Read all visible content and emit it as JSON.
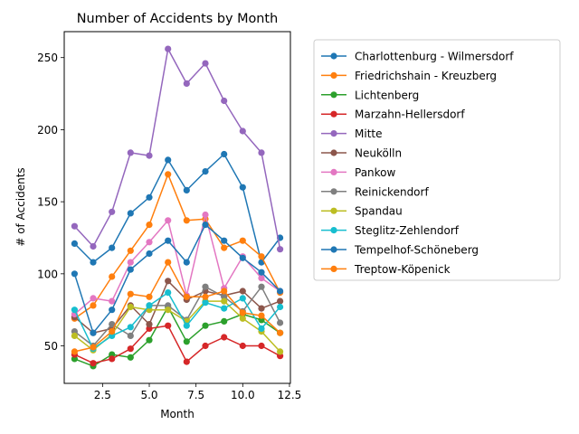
{
  "chart_data": {
    "type": "line",
    "title": "Number of Accidents by Month",
    "xlabel": "Month",
    "ylabel": "# of Accidents",
    "xlim": [
      0.45,
      12.55
    ],
    "ylim": [
      24,
      268
    ],
    "xticks": [
      2.5,
      5.0,
      7.5,
      10.0,
      12.5
    ],
    "xtick_labels": [
      "2.5",
      "5.0",
      "7.5",
      "10.0",
      "12.5"
    ],
    "yticks": [
      50,
      100,
      150,
      200,
      250
    ],
    "ytick_labels": [
      "50",
      "100",
      "150",
      "200",
      "250"
    ],
    "grid": false,
    "legend_position": "outside-right",
    "x": [
      1,
      2,
      3,
      4,
      5,
      6,
      7,
      8,
      9,
      10,
      11,
      12
    ],
    "series": [
      {
        "name": "Charlottenburg - Wilmersdorf",
        "color": "#1f77b4",
        "values": [
          121,
          108,
          118,
          142,
          153,
          179,
          158,
          171,
          183,
          160,
          108,
          125
        ]
      },
      {
        "name": "Friedrichshain - Kreuzberg",
        "color": "#ff7f0e",
        "values": [
          69,
          78,
          98,
          116,
          134,
          169,
          137,
          138,
          118,
          123,
          112,
          87
        ]
      },
      {
        "name": "Lichtenberg",
        "color": "#2ca02c",
        "values": [
          41,
          36,
          44,
          42,
          54,
          77,
          53,
          64,
          67,
          72,
          68,
          59
        ]
      },
      {
        "name": "Marzahn-Hellersdorf",
        "color": "#d62728",
        "values": [
          44,
          38,
          41,
          48,
          62,
          64,
          39,
          50,
          56,
          50,
          50,
          43
        ]
      },
      {
        "name": "Mitte",
        "color": "#9467bd",
        "values": [
          133,
          119,
          143,
          184,
          182,
          256,
          232,
          246,
          220,
          199,
          184,
          117
        ]
      },
      {
        "name": "Neukölln",
        "color": "#8c564b",
        "values": [
          70,
          59,
          62,
          78,
          65,
          95,
          82,
          88,
          85,
          88,
          76,
          81
        ]
      },
      {
        "name": "Pankow",
        "color": "#e377c2",
        "values": [
          72,
          83,
          81,
          108,
          122,
          137,
          85,
          141,
          90,
          112,
          97,
          88
        ]
      },
      {
        "name": "Reinickendorf",
        "color": "#7f7f7f",
        "values": [
          60,
          50,
          65,
          57,
          78,
          78,
          68,
          91,
          84,
          74,
          91,
          66
        ]
      },
      {
        "name": "Spandau",
        "color": "#bcbd22",
        "values": [
          57,
          47,
          58,
          77,
          75,
          75,
          67,
          81,
          81,
          69,
          60,
          46
        ]
      },
      {
        "name": "Steglitz-Zehlendorf",
        "color": "#17becf",
        "values": [
          75,
          48,
          57,
          63,
          78,
          87,
          64,
          80,
          76,
          83,
          62,
          77
        ]
      },
      {
        "name": "Tempelhof-Schöneberg",
        "color": "#1f77b4",
        "values": [
          100,
          59,
          75,
          103,
          114,
          123,
          108,
          134,
          123,
          111,
          101,
          88
        ]
      },
      {
        "name": "Treptow-Köpenick",
        "color": "#ff7f0e",
        "values": [
          46,
          49,
          60,
          86,
          84,
          108,
          84,
          84,
          88,
          73,
          71,
          59
        ]
      }
    ]
  }
}
